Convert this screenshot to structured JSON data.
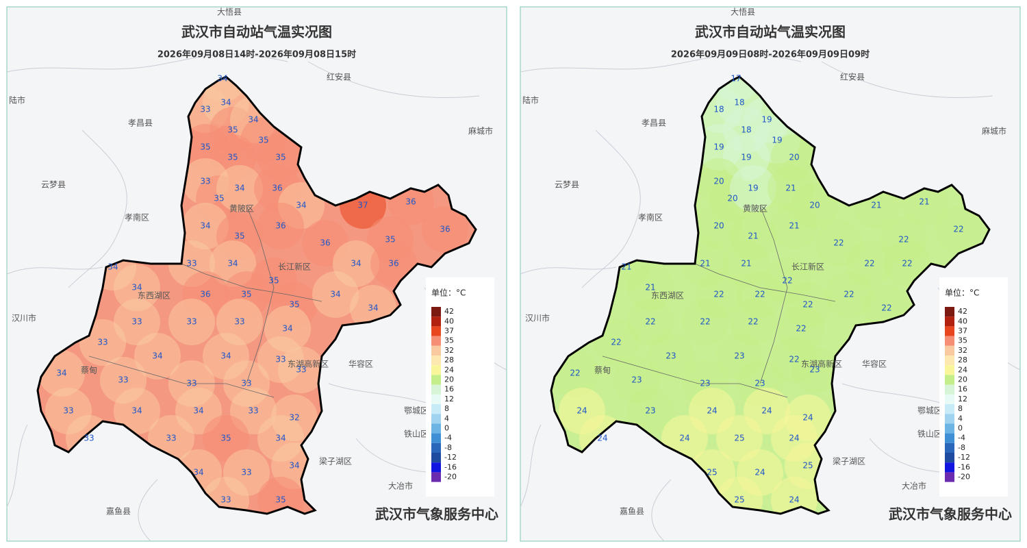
{
  "maps": [
    {
      "title": "武汉市自动站气温实况图",
      "subtitle": "2026年09月08日14时-2026年09月08日15时",
      "place_labels": [
        "大悟县",
        "红安县",
        "麻城市",
        "孝昌县",
        "陆市",
        "云梦县",
        "孝南区",
        "汉川市",
        "华容区",
        "鄂城区",
        "铁山区",
        "梁子湖区",
        "大冶市",
        "嘉鱼县",
        "黄陂区",
        "长江新区",
        "东西湖区",
        "蔡甸",
        "东湖高新区"
      ],
      "stations": [
        34,
        33,
        34,
        35,
        34,
        35,
        35,
        35,
        35,
        33,
        35,
        34,
        36,
        34,
        34,
        35,
        36,
        36,
        37,
        36,
        36,
        35,
        34,
        36,
        33,
        34,
        35,
        34,
        34,
        36,
        35,
        35,
        34,
        34,
        33,
        33,
        33,
        34,
        33,
        34,
        34,
        33,
        34,
        33,
        33,
        33,
        33,
        33,
        34,
        34,
        33,
        32,
        33,
        33,
        35,
        34,
        34,
        33,
        34,
        33,
        35
      ],
      "legend": {
        "unit": "单位：°C",
        "levels": [
          42,
          40,
          37,
          35,
          32,
          28,
          24,
          20,
          16,
          12,
          8,
          4,
          0,
          -4,
          -8,
          -12,
          -16,
          -20
        ],
        "colors": [
          "#7a1a10",
          "#b22010",
          "#e8461f",
          "#f58e74",
          "#f9c9a0",
          "#fde8b0",
          "#f8f59a",
          "#c4ee8a",
          "#d6f5d6",
          "#e8faf5",
          "#c7ecf7",
          "#9fd3ef",
          "#6cb4e3",
          "#3f8fd4",
          "#2a66b9",
          "#1e4aa0",
          "#1015e0",
          "#6a2bb0"
        ]
      },
      "footer": "武汉市气象服务中心"
    },
    {
      "title": "武汉市自动站气温实况图",
      "subtitle": "2026年09月09日08时-2026年09月09日09时",
      "place_labels": [
        "大悟县",
        "红安县",
        "麻城市",
        "孝昌县",
        "陆市",
        "云梦县",
        "孝南区",
        "汉川市",
        "华容区",
        "鄂城区",
        "铁山区",
        "梁子湖区",
        "大冶市",
        "嘉鱼县",
        "黄陂区",
        "长江新区",
        "东西湖区",
        "蔡甸",
        "东湖高新区"
      ],
      "stations": [
        17,
        18,
        18,
        18,
        19,
        19,
        19,
        19,
        20,
        20,
        20,
        19,
        21,
        20,
        20,
        21,
        21,
        22,
        21,
        21,
        22,
        22,
        22,
        22,
        21,
        21,
        22,
        21,
        21,
        22,
        22,
        22,
        22,
        22,
        22,
        22,
        22,
        22,
        22,
        23,
        23,
        22,
        22,
        23,
        23,
        23,
        23,
        24,
        23,
        24,
        24,
        24,
        24,
        24,
        25,
        24,
        25,
        24,
        25,
        25,
        24
      ],
      "legend": {
        "unit": "单位：°C",
        "levels": [
          42,
          40,
          37,
          35,
          32,
          28,
          24,
          20,
          16,
          12,
          8,
          4,
          0,
          -4,
          -8,
          -12,
          -16,
          -20
        ],
        "colors": [
          "#7a1a10",
          "#b22010",
          "#e8461f",
          "#f58e74",
          "#f9c9a0",
          "#fde8b0",
          "#f8f59a",
          "#c4ee8a",
          "#d6f5d6",
          "#e8faf5",
          "#c7ecf7",
          "#9fd3ef",
          "#6cb4e3",
          "#3f8fd4",
          "#2a66b9",
          "#1e4aa0",
          "#1015e0",
          "#6a2bb0"
        ]
      },
      "footer": "武汉市气象服务中心"
    }
  ]
}
